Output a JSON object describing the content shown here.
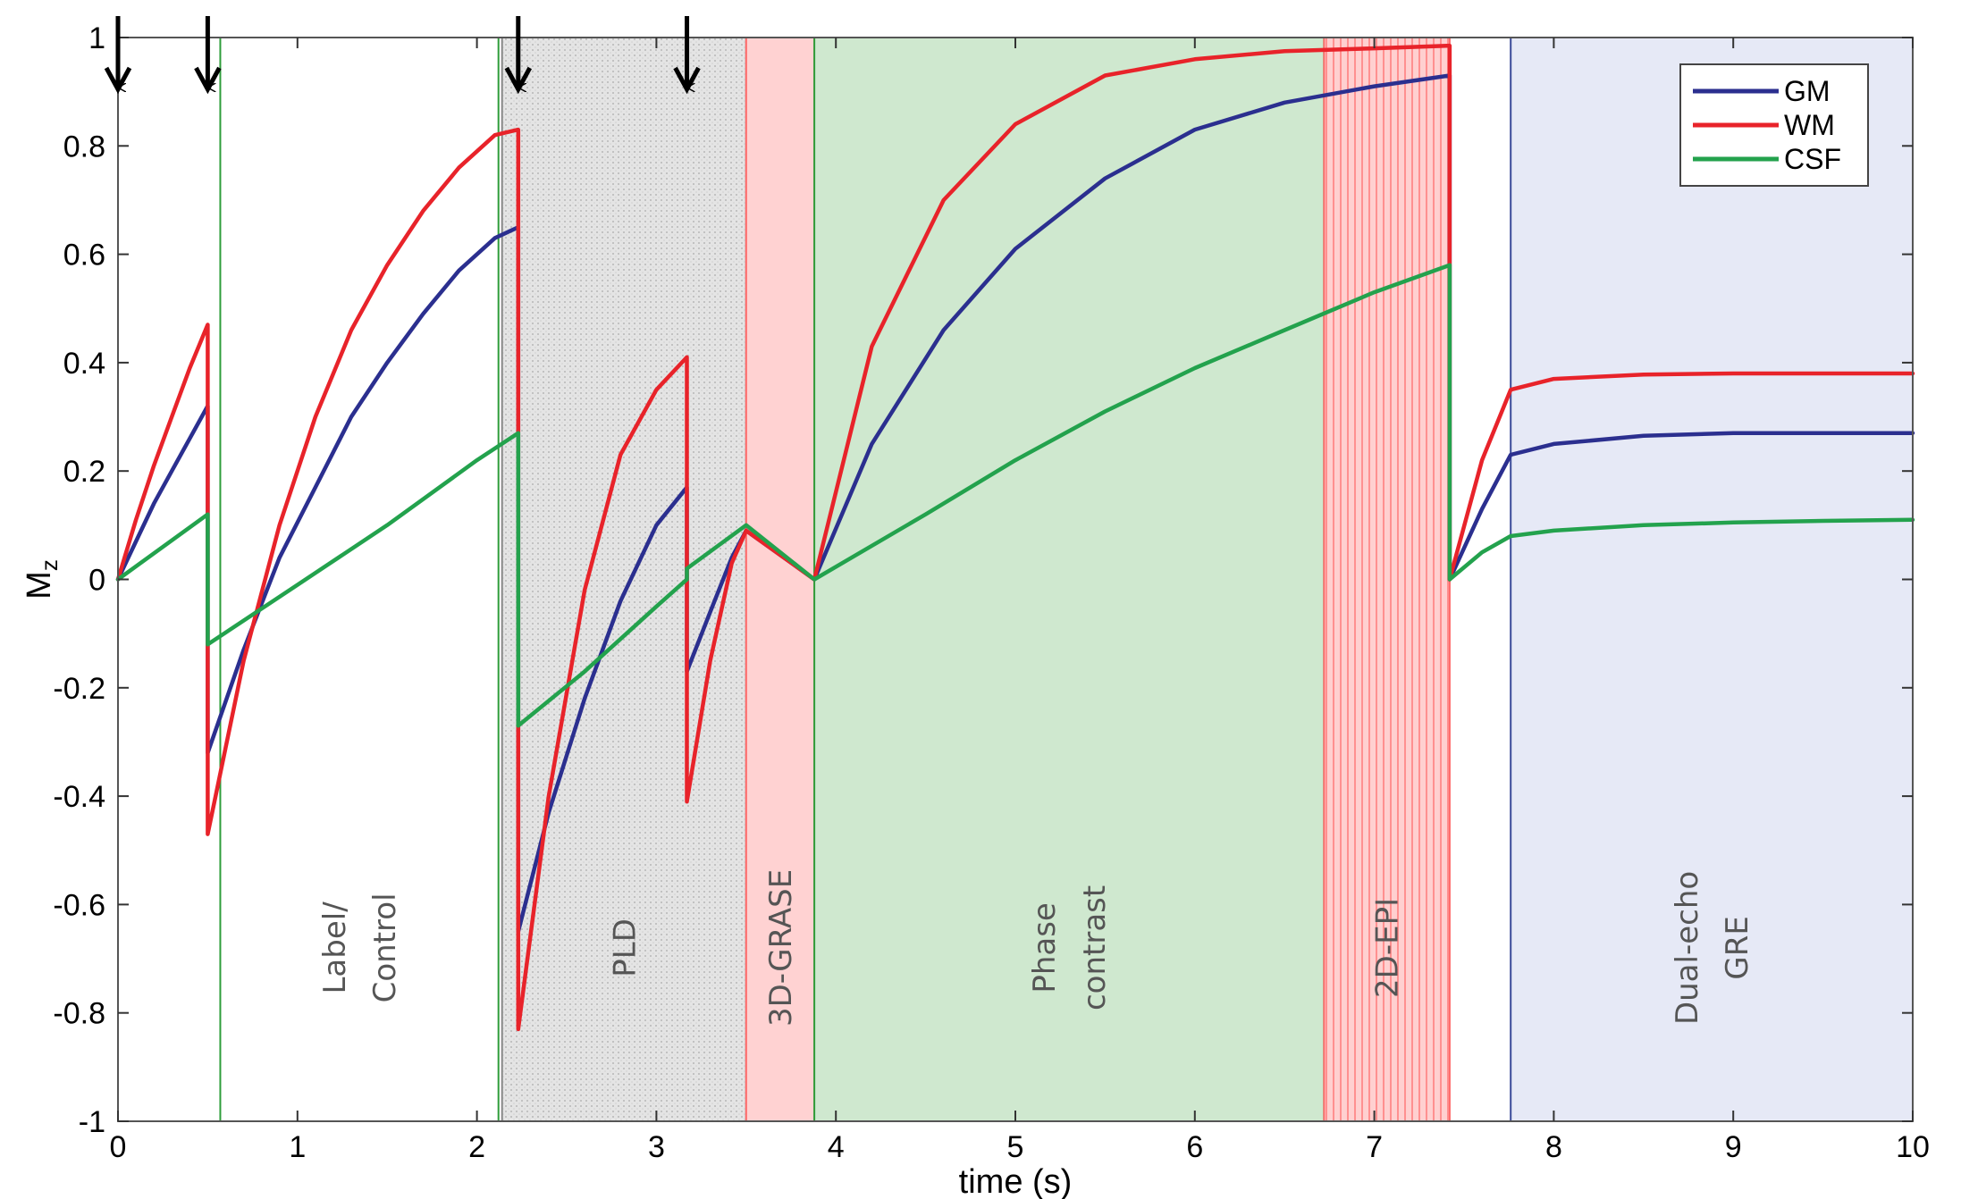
{
  "chart_data": {
    "type": "line",
    "title": "",
    "xlabel": "time (s)",
    "ylabel": "M",
    "ylabel_subscript": "z",
    "xlim": [
      0,
      10
    ],
    "ylim": [
      -1,
      1
    ],
    "xticks": [
      0,
      1,
      2,
      3,
      4,
      5,
      6,
      7,
      8,
      9,
      10
    ],
    "yticks": [
      1,
      0.8,
      0.6,
      0.4,
      0.2,
      0,
      -0.2,
      -0.4,
      -0.6,
      -0.8,
      -1
    ],
    "ytick_labels": [
      "1",
      "0.8",
      "0.6",
      "0.4",
      "0.2",
      "0",
      "-0.2",
      "-0.4",
      "-0.6",
      "-0.8",
      "-1"
    ],
    "pulse_arrows_at": [
      0.0,
      0.5,
      2.23,
      3.17
    ],
    "regions": [
      {
        "label": [
          "Label/",
          "Control"
        ],
        "start": 0.57,
        "end": 2.12,
        "color": "#ffffff",
        "border": "#2e9d3a"
      },
      {
        "label": [
          "PLD"
        ],
        "start": 2.14,
        "end": 3.5,
        "color": "#e4e4e4",
        "border": "#888888"
      },
      {
        "label": [
          "3D-GRASE"
        ],
        "start": 3.5,
        "end": 3.88,
        "color": "#ffd2d2",
        "border": "#ff6a6a"
      },
      {
        "label": [
          "Phase",
          "contrast"
        ],
        "start": 3.88,
        "end": 6.72,
        "color": "#cfe8cf",
        "border": "#2e9d3a"
      },
      {
        "label": [
          "2D-EPI"
        ],
        "start": 6.72,
        "end": 7.42,
        "color": "#ffd0d0",
        "border": "#ff6a6a"
      },
      {
        "label": [
          "Dual-echo",
          "GRE"
        ],
        "start": 7.76,
        "end": 10.0,
        "color": "#e6e9f6",
        "border": "#3a4a99"
      }
    ],
    "series": [
      {
        "name": "GM",
        "color": "#2b2f8f",
        "x": [
          0,
          0.1,
          0.2,
          0.3,
          0.4,
          0.5,
          0.5,
          0.7,
          0.9,
          1.1,
          1.3,
          1.5,
          1.7,
          1.9,
          2.1,
          2.23,
          2.23,
          2.4,
          2.6,
          2.8,
          3.0,
          3.17,
          3.17,
          3.3,
          3.42,
          3.5,
          3.88,
          4.2,
          4.6,
          5.0,
          5.5,
          6.0,
          6.5,
          7.0,
          7.42,
          7.42,
          7.6,
          7.76,
          8.0,
          8.5,
          9.0,
          9.5,
          10.0
        ],
        "values": [
          0,
          0.07,
          0.14,
          0.2,
          0.26,
          0.32,
          -0.32,
          -0.13,
          0.04,
          0.17,
          0.3,
          0.4,
          0.49,
          0.57,
          0.63,
          0.65,
          -0.65,
          -0.43,
          -0.22,
          -0.04,
          0.1,
          0.17,
          -0.17,
          -0.06,
          0.04,
          0.09,
          0.0,
          0.25,
          0.46,
          0.61,
          0.74,
          0.83,
          0.88,
          0.91,
          0.93,
          0.0,
          0.13,
          0.23,
          0.25,
          0.265,
          0.27,
          0.27,
          0.27
        ]
      },
      {
        "name": "WM",
        "color": "#e8232a",
        "x": [
          0,
          0.1,
          0.2,
          0.3,
          0.4,
          0.5,
          0.5,
          0.7,
          0.9,
          1.1,
          1.3,
          1.5,
          1.7,
          1.9,
          2.1,
          2.23,
          2.23,
          2.4,
          2.6,
          2.8,
          3.0,
          3.17,
          3.17,
          3.3,
          3.42,
          3.5,
          3.88,
          4.2,
          4.6,
          5.0,
          5.5,
          6.0,
          6.5,
          7.0,
          7.42,
          7.42,
          7.6,
          7.76,
          8.0,
          8.5,
          9.0,
          9.5,
          10.0
        ],
        "values": [
          0,
          0.11,
          0.21,
          0.3,
          0.39,
          0.47,
          -0.47,
          -0.15,
          0.1,
          0.3,
          0.46,
          0.58,
          0.68,
          0.76,
          0.82,
          0.83,
          -0.83,
          -0.4,
          -0.02,
          0.23,
          0.35,
          0.41,
          -0.41,
          -0.15,
          0.03,
          0.09,
          0.0,
          0.43,
          0.7,
          0.84,
          0.93,
          0.96,
          0.975,
          0.98,
          0.985,
          0.0,
          0.22,
          0.35,
          0.37,
          0.378,
          0.38,
          0.38,
          0.38
        ]
      },
      {
        "name": "CSF",
        "color": "#23a24d",
        "x": [
          0,
          0.5,
          0.5,
          1.0,
          1.5,
          2.0,
          2.23,
          2.23,
          2.6,
          3.0,
          3.17,
          3.17,
          3.5,
          3.88,
          4.5,
          5.0,
          5.5,
          6.0,
          6.5,
          7.0,
          7.42,
          7.42,
          7.6,
          7.76,
          8.0,
          8.5,
          9.0,
          9.5,
          10.0
        ],
        "values": [
          0,
          0.12,
          -0.12,
          -0.01,
          0.1,
          0.22,
          0.27,
          -0.27,
          -0.17,
          -0.05,
          0.0,
          0.02,
          0.1,
          0.0,
          0.12,
          0.22,
          0.31,
          0.39,
          0.46,
          0.53,
          0.58,
          0.0,
          0.05,
          0.08,
          0.09,
          0.1,
          0.105,
          0.108,
          0.11
        ]
      }
    ],
    "legend": [
      "GM",
      "WM",
      "CSF"
    ],
    "legend_position": "top-right",
    "grid": false
  }
}
